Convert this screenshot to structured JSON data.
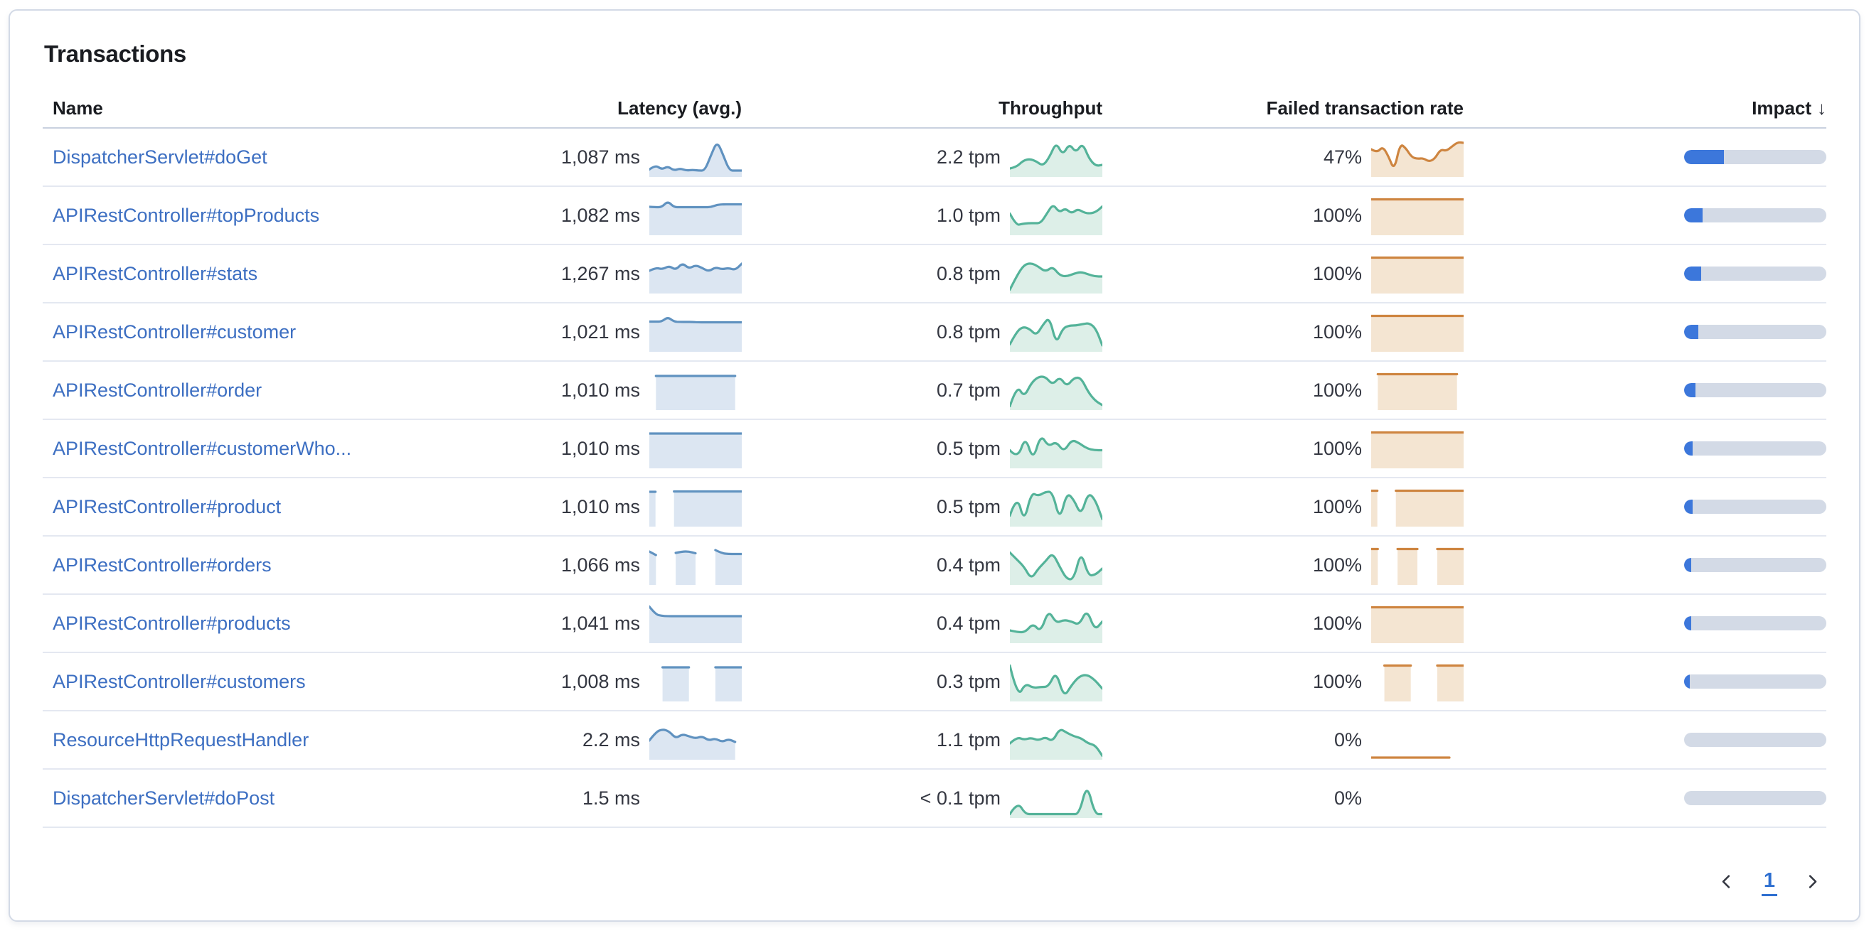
{
  "panel": {
    "title": "Transactions"
  },
  "table": {
    "columns": [
      {
        "label": "Name"
      },
      {
        "label": "Latency (avg.)"
      },
      {
        "label": "Throughput"
      },
      {
        "label": "Failed transaction rate"
      },
      {
        "label": "Impact",
        "sorted": "desc",
        "sort_icon": "↓"
      }
    ],
    "rows": [
      {
        "name": "DispatcherServlet#doGet",
        "latency": "1,087 ms",
        "throughput": "2.2 tpm",
        "failed_rate": "47%",
        "impact_pct": 28,
        "latency_spark": {
          "values": [
            0.85,
            0.72,
            0.85,
            0.76,
            0.88,
            0.82,
            0.88,
            0.86,
            0.88,
            0.88,
            0.45,
            0.05,
            0.45,
            0.88,
            0.88,
            0.88
          ]
        },
        "throughput_spark": {
          "values": [
            0.82,
            0.78,
            0.6,
            0.55,
            0.62,
            0.75,
            0.5,
            0.08,
            0.45,
            0.12,
            0.38,
            0.1,
            0.55,
            0.75,
            0.72
          ]
        },
        "failed_spark": {
          "values": [
            0.28,
            0.38,
            0.2,
            0.48,
            0.88,
            0.12,
            0.25,
            0.5,
            0.55,
            0.53,
            0.63,
            0.55,
            0.28,
            0.33,
            0.2,
            0.08,
            0.1
          ]
        }
      },
      {
        "name": "APIRestController#topProducts",
        "latency": "1,082 ms",
        "throughput": "1.0 tpm",
        "failed_rate": "100%",
        "impact_pct": 13,
        "latency_spark": {
          "values": [
            0.26,
            0.27,
            0.27,
            0.1,
            0.27,
            0.27,
            0.27,
            0.27,
            0.27,
            0.27,
            0.27,
            0.2,
            0.19,
            0.19,
            0.19,
            0.19
          ]
        },
        "throughput_spark": {
          "values": [
            0.45,
            0.78,
            0.74,
            0.72,
            0.72,
            0.72,
            0.45,
            0.18,
            0.42,
            0.3,
            0.45,
            0.32,
            0.42,
            0.45,
            0.4,
            0.25
          ]
        },
        "failed_spark": {
          "values": [
            0.05,
            0.05,
            0.05,
            0.05,
            0.05,
            0.05,
            0.05,
            0.05,
            0.05,
            0.05,
            0.05,
            0.05,
            0.05,
            0.05,
            0.05
          ]
        }
      },
      {
        "name": "APIRestController#stats",
        "latency": "1,267 ms",
        "throughput": "0.8 tpm",
        "failed_rate": "100%",
        "impact_pct": 12,
        "latency_spark": {
          "values": [
            0.42,
            0.33,
            0.38,
            0.28,
            0.4,
            0.2,
            0.36,
            0.26,
            0.34,
            0.44,
            0.32,
            0.38,
            0.34,
            0.4,
            0.22
          ]
        },
        "throughput_spark": {
          "values": [
            0.95,
            0.55,
            0.25,
            0.2,
            0.3,
            0.45,
            0.3,
            0.55,
            0.58,
            0.5,
            0.45,
            0.52,
            0.58,
            0.58
          ]
        },
        "failed_spark": {
          "values": [
            0.05,
            0.05,
            0.05,
            0.05,
            0.05,
            0.05,
            0.05,
            0.05,
            0.05,
            0.05,
            0.05,
            0.05,
            0.05,
            0.05,
            0.05
          ]
        }
      },
      {
        "name": "APIRestController#customer",
        "latency": "1,021 ms",
        "throughput": "0.8 tpm",
        "failed_rate": "100%",
        "impact_pct": 10,
        "latency_spark": {
          "values": [
            0.21,
            0.21,
            0.21,
            0.08,
            0.21,
            0.22,
            0.22,
            0.22,
            0.23,
            0.23,
            0.23,
            0.23,
            0.23,
            0.23,
            0.23,
            0.23
          ]
        },
        "throughput_spark": {
          "values": [
            0.85,
            0.5,
            0.35,
            0.42,
            0.6,
            0.3,
            0.08,
            0.85,
            0.4,
            0.32,
            0.32,
            0.28,
            0.25,
            0.4,
            0.88
          ]
        },
        "failed_spark": {
          "values": [
            0.05,
            0.05,
            0.05,
            0.05,
            0.05,
            0.05,
            0.05,
            0.05,
            0.05,
            0.05,
            0.05,
            0.05,
            0.05,
            0.05,
            0.05
          ]
        }
      },
      {
        "name": "APIRestController#order",
        "latency": "1,010 ms",
        "throughput": "0.7 tpm",
        "failed_rate": "100%",
        "impact_pct": 8,
        "latency_spark": {
          "values": [
            null,
            0.1,
            0.1,
            0.1,
            0.1,
            0.1,
            0.1,
            0.1,
            0.1,
            0.1,
            0.1,
            0.1,
            0.1,
            0.1,
            null
          ]
        },
        "throughput_spark": {
          "values": [
            0.95,
            0.35,
            0.7,
            0.3,
            0.12,
            0.12,
            0.35,
            0.12,
            0.4,
            0.15,
            0.15,
            0.55,
            0.8,
            0.92
          ]
        },
        "failed_spark": {
          "values": [
            null,
            0.05,
            0.05,
            0.05,
            0.05,
            0.05,
            0.05,
            0.05,
            0.05,
            0.05,
            0.05,
            0.05,
            0.05,
            0.05,
            null
          ]
        }
      },
      {
        "name": "APIRestController#customerWho...",
        "latency": "1,010 ms",
        "throughput": "0.5 tpm",
        "failed_rate": "100%",
        "impact_pct": 6,
        "latency_spark": {
          "values": [
            0.08,
            0.08,
            0.08,
            0.08,
            0.08,
            0.08,
            0.08,
            0.08,
            0.08,
            0.08,
            0.08,
            0.08,
            0.08,
            0.08,
            0.08
          ]
        },
        "throughput_spark": {
          "values": [
            0.55,
            0.8,
            0.15,
            0.85,
            0.1,
            0.45,
            0.3,
            0.6,
            0.25,
            0.35,
            0.5,
            0.55,
            0.55
          ]
        },
        "failed_spark": {
          "values": [
            0.05,
            0.05,
            0.05,
            0.05,
            0.05,
            0.05,
            0.05,
            0.05,
            0.05,
            0.05,
            0.05,
            0.05,
            0.05,
            0.05,
            0.05
          ]
        }
      },
      {
        "name": "APIRestController#product",
        "latency": "1,010 ms",
        "throughput": "0.5 tpm",
        "failed_rate": "100%",
        "impact_pct": 6,
        "latency_spark": {
          "values": [
            0.08,
            0.08,
            null,
            null,
            0.07,
            0.07,
            0.07,
            0.07,
            0.07,
            0.07,
            0.07,
            0.07,
            0.07,
            0.07,
            0.07,
            0.07
          ]
        },
        "throughput_spark": {
          "values": [
            0.75,
            0.15,
            0.95,
            0.1,
            0.2,
            0.08,
            0.08,
            0.9,
            0.1,
            0.3,
            0.75,
            0.1,
            0.3,
            0.85
          ]
        },
        "failed_spark": {
          "values": [
            0.05,
            0.05,
            null,
            null,
            0.05,
            0.05,
            0.05,
            0.05,
            0.05,
            0.05,
            0.05,
            0.05,
            0.05,
            0.05,
            0.05,
            0.05
          ]
        }
      },
      {
        "name": "APIRestController#orders",
        "latency": "1,066 ms",
        "throughput": "0.4 tpm",
        "failed_rate": "100%",
        "impact_pct": 5,
        "latency_spark": {
          "values": [
            0.12,
            0.22,
            null,
            null,
            0.16,
            0.12,
            0.12,
            0.17,
            null,
            null,
            0.08,
            0.17,
            0.19,
            0.19,
            0.19
          ]
        },
        "throughput_spark": {
          "values": [
            0.15,
            0.35,
            0.55,
            0.9,
            0.6,
            0.4,
            0.15,
            0.55,
            0.9,
            0.9,
            0.1,
            0.8,
            0.78,
            0.6
          ]
        },
        "failed_spark": {
          "values": [
            0.05,
            0.05,
            null,
            null,
            0.05,
            0.05,
            0.05,
            0.05,
            null,
            null,
            0.05,
            0.05,
            0.05,
            0.05,
            0.05
          ]
        }
      },
      {
        "name": "APIRestController#products",
        "latency": "1,041 ms",
        "throughput": "0.4 tpm",
        "failed_rate": "100%",
        "impact_pct": 5,
        "latency_spark": {
          "values": [
            0.03,
            0.25,
            0.29,
            0.3,
            0.3,
            0.3,
            0.3,
            0.3,
            0.3,
            0.3,
            0.3,
            0.3,
            0.3,
            0.3,
            0.3,
            0.3
          ]
        },
        "throughput_spark": {
          "values": [
            0.7,
            0.75,
            0.75,
            0.5,
            0.75,
            0.12,
            0.5,
            0.4,
            0.45,
            0.55,
            0.1,
            0.7,
            0.45
          ]
        },
        "failed_spark": {
          "values": [
            0.05,
            0.05,
            0.05,
            0.05,
            0.05,
            0.05,
            0.05,
            0.05,
            0.05,
            0.05,
            0.05,
            0.05,
            0.05,
            0.05,
            0.05
          ]
        }
      },
      {
        "name": "APIRestController#customers",
        "latency": "1,008 ms",
        "throughput": "0.3 tpm",
        "failed_rate": "100%",
        "impact_pct": 4,
        "latency_spark": {
          "values": [
            null,
            null,
            0.1,
            0.1,
            0.1,
            0.1,
            0.1,
            null,
            null,
            null,
            0.1,
            0.1,
            0.1,
            0.1,
            0.1
          ]
        },
        "throughput_spark": {
          "values": [
            0.05,
            0.95,
            0.55,
            0.68,
            0.65,
            0.65,
            0.2,
            0.95,
            0.6,
            0.35,
            0.3,
            0.45,
            0.7
          ]
        },
        "failed_spark": {
          "values": [
            null,
            null,
            0.05,
            0.05,
            0.05,
            0.05,
            0.05,
            null,
            null,
            null,
            0.05,
            0.05,
            0.05,
            0.05,
            0.05
          ]
        }
      },
      {
        "name": "ResourceHttpRequestHandler",
        "latency": "2.2 ms",
        "throughput": "1.1 tpm",
        "failed_rate": "0%",
        "impact_pct": 0,
        "latency_spark": {
          "values": [
            0.52,
            0.28,
            0.2,
            0.26,
            0.46,
            0.34,
            0.4,
            0.46,
            0.4,
            0.52,
            0.46,
            0.56,
            0.48,
            0.56,
            null
          ]
        },
        "throughput_spark": {
          "values": [
            0.6,
            0.42,
            0.5,
            0.44,
            0.52,
            0.42,
            0.55,
            0.18,
            0.3,
            0.4,
            0.45,
            0.6,
            0.65,
            0.95
          ]
        },
        "failed_spark": {
          "values": [
            1,
            1,
            1,
            1,
            1,
            1,
            1,
            1,
            1,
            1,
            1,
            1,
            null,
            null
          ],
          "no_fill": true
        }
      },
      {
        "name": "DispatcherServlet#doPost",
        "latency": "1.5 ms",
        "throughput": "< 0.1 tpm",
        "failed_rate": "0%",
        "impact_pct": 0,
        "latency_spark": {
          "values": []
        },
        "throughput_spark": {
          "values": [
            0.95,
            0.6,
            0.95,
            0.95,
            0.95,
            0.95,
            0.95,
            0.95,
            0.95,
            0.95,
            0.08,
            0.95,
            0.95
          ]
        },
        "failed_spark": {
          "values": []
        }
      }
    ]
  },
  "pagination": {
    "page": "1"
  },
  "colors": {
    "link": "#3D6FC2",
    "latency_line": "#6092C0",
    "latency_fill": "#DCE6F2",
    "throughput_line": "#54B399",
    "throughput_fill": "#DDEFE8",
    "failed_line": "#CE8540",
    "failed_fill": "#F4E5D2",
    "impact_fill": "#3C77DB",
    "impact_track": "#D3DAE6"
  }
}
